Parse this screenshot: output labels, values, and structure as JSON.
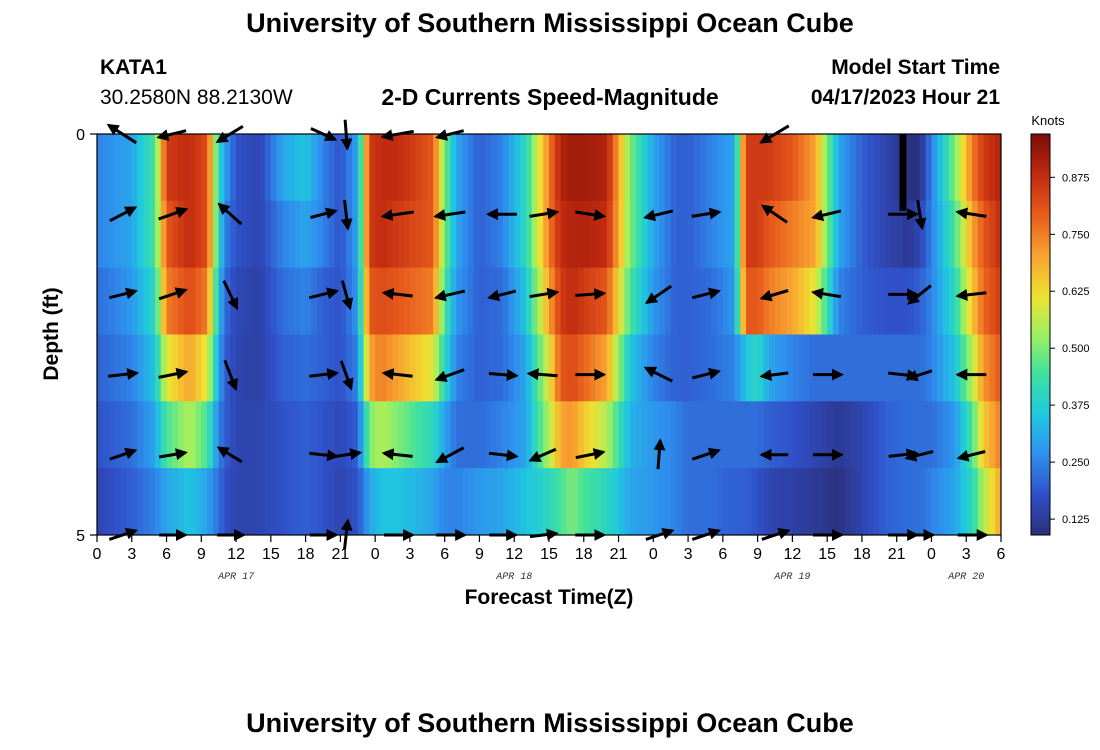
{
  "header": {
    "title": "University of Southern Mississippi Ocean Cube",
    "station_id": "KATA1",
    "station_coords": "30.2580N  88.2130W",
    "plot_title": "2-D Currents Speed-Magnitude",
    "model_start_label": "Model Start Time",
    "model_start_value": "04/17/2023 Hour 21"
  },
  "footer": {
    "title": "University of Southern Mississippi Ocean Cube"
  },
  "colors": {
    "colormap": [
      "#2b2e7a",
      "#3050c8",
      "#2f8fee",
      "#1fc8e0",
      "#3ee0a0",
      "#9ff060",
      "#f0e030",
      "#f8a030",
      "#e85a1c",
      "#c02a10",
      "#7a0c06"
    ],
    "arrow": "#000000"
  },
  "chart_data": {
    "type": "heatmap",
    "title": "2-D Currents Speed-Magnitude",
    "xlabel": "Forecast Time(Z)",
    "ylabel": "Depth (ft)",
    "colorbar_label": "Knots",
    "colorbar_ticks": [
      "0.125",
      "0.250",
      "0.375",
      "0.500",
      "0.625",
      "0.750",
      "0.875"
    ],
    "colorbar_range": [
      0.09,
      0.97
    ],
    "y_tick_labels": [
      "0",
      "5"
    ],
    "ylim": [
      0,
      5
    ],
    "x_tick_labels": [
      "0",
      "3",
      "6",
      "9",
      "12",
      "15",
      "18",
      "21",
      "0",
      "3",
      "6",
      "9",
      "12",
      "15",
      "18",
      "21",
      "0",
      "3",
      "6",
      "9",
      "12",
      "15",
      "18",
      "21",
      "0",
      "3",
      "6"
    ],
    "date_labels": [
      {
        "text": "APR 17",
        "hour": 12
      },
      {
        "text": "APR 18",
        "hour": 36
      },
      {
        "text": "APR 19",
        "hour": 60
      },
      {
        "text": "APR 20",
        "hour": 75
      }
    ],
    "x_hours_range": [
      0,
      78
    ],
    "depth_rows": [
      0,
      1,
      2,
      3,
      4,
      5
    ],
    "speed_profile": {
      "hours": [
        0,
        3,
        5,
        6,
        8,
        9.5,
        10.5,
        11,
        12,
        14,
        16,
        18,
        19.5,
        21,
        22.5,
        23.5,
        24.5,
        26,
        29,
        30,
        31,
        33,
        35,
        37,
        39,
        40,
        41,
        42,
        44,
        46,
        48,
        50,
        51,
        53,
        55,
        56,
        57,
        58,
        60,
        62,
        64,
        66,
        68,
        70,
        71,
        72,
        74,
        75.5,
        76.5,
        78
      ],
      "rows": [
        [
          0.25,
          0.3,
          0.45,
          0.85,
          0.88,
          0.82,
          0.4,
          0.3,
          0.18,
          0.15,
          0.3,
          0.35,
          0.25,
          0.18,
          0.3,
          0.85,
          0.88,
          0.88,
          0.8,
          0.5,
          0.3,
          0.2,
          0.25,
          0.4,
          0.75,
          0.9,
          0.92,
          0.92,
          0.9,
          0.5,
          0.3,
          0.2,
          0.2,
          0.25,
          0.3,
          0.85,
          0.85,
          0.85,
          0.8,
          0.7,
          0.3,
          0.2,
          0.15,
          0.1,
          0.1,
          0.25,
          0.5,
          0.75,
          0.85,
          0.9
        ],
        [
          0.25,
          0.3,
          0.45,
          0.8,
          0.88,
          0.82,
          0.4,
          0.25,
          0.18,
          0.15,
          0.25,
          0.3,
          0.25,
          0.18,
          0.3,
          0.85,
          0.88,
          0.85,
          0.8,
          0.5,
          0.3,
          0.2,
          0.25,
          0.4,
          0.75,
          0.88,
          0.9,
          0.9,
          0.88,
          0.5,
          0.3,
          0.2,
          0.2,
          0.25,
          0.3,
          0.85,
          0.85,
          0.8,
          0.75,
          0.7,
          0.3,
          0.2,
          0.15,
          0.12,
          0.15,
          0.25,
          0.45,
          0.7,
          0.8,
          0.88
        ],
        [
          0.22,
          0.28,
          0.4,
          0.75,
          0.82,
          0.75,
          0.35,
          0.22,
          0.16,
          0.14,
          0.22,
          0.25,
          0.2,
          0.18,
          0.28,
          0.8,
          0.82,
          0.8,
          0.75,
          0.45,
          0.28,
          0.2,
          0.22,
          0.35,
          0.7,
          0.85,
          0.88,
          0.85,
          0.8,
          0.45,
          0.28,
          0.2,
          0.2,
          0.22,
          0.28,
          0.8,
          0.8,
          0.75,
          0.7,
          0.6,
          0.25,
          0.2,
          0.18,
          0.18,
          0.2,
          0.25,
          0.4,
          0.65,
          0.78,
          0.85
        ],
        [
          0.2,
          0.25,
          0.35,
          0.6,
          0.7,
          0.6,
          0.3,
          0.2,
          0.15,
          0.14,
          0.2,
          0.22,
          0.2,
          0.18,
          0.25,
          0.7,
          0.75,
          0.7,
          0.6,
          0.4,
          0.25,
          0.2,
          0.22,
          0.3,
          0.6,
          0.8,
          0.82,
          0.78,
          0.7,
          0.35,
          0.25,
          0.2,
          0.2,
          0.22,
          0.25,
          0.35,
          0.4,
          0.3,
          0.25,
          0.22,
          0.22,
          0.22,
          0.22,
          0.22,
          0.22,
          0.25,
          0.35,
          0.55,
          0.72,
          0.8
        ],
        [
          0.18,
          0.22,
          0.3,
          0.45,
          0.55,
          0.45,
          0.25,
          0.2,
          0.15,
          0.15,
          0.18,
          0.2,
          0.18,
          0.16,
          0.2,
          0.5,
          0.55,
          0.5,
          0.4,
          0.3,
          0.22,
          0.22,
          0.25,
          0.3,
          0.55,
          0.7,
          0.72,
          0.65,
          0.55,
          0.32,
          0.28,
          0.25,
          0.22,
          0.22,
          0.22,
          0.22,
          0.22,
          0.2,
          0.18,
          0.15,
          0.12,
          0.15,
          0.2,
          0.22,
          0.22,
          0.22,
          0.28,
          0.45,
          0.65,
          0.75
        ],
        [
          0.15,
          0.2,
          0.25,
          0.3,
          0.35,
          0.3,
          0.22,
          0.18,
          0.15,
          0.15,
          0.18,
          0.2,
          0.18,
          0.15,
          0.18,
          0.3,
          0.35,
          0.35,
          0.3,
          0.25,
          0.25,
          0.28,
          0.3,
          0.35,
          0.4,
          0.45,
          0.5,
          0.45,
          0.4,
          0.3,
          0.28,
          0.25,
          0.22,
          0.22,
          0.2,
          0.2,
          0.18,
          0.15,
          0.14,
          0.12,
          0.1,
          0.15,
          0.2,
          0.22,
          0.22,
          0.25,
          0.3,
          0.4,
          0.55,
          0.7
        ]
      ]
    },
    "dark_spot": {
      "hour": 69.5,
      "rows": [
        0,
        1
      ],
      "value": 0.09
    },
    "arrow_hours": [
      2.2,
      6.5,
      11.5,
      19.5,
      21.5,
      26,
      30.5,
      35,
      38.5,
      42.5,
      48.5,
      52.5,
      58.5,
      63,
      69.5,
      71,
      75.5
    ],
    "arrows_by_row": [
      [
        [
          -2.5,
          1.6
        ],
        [
          -2.5,
          -0.6
        ],
        [
          -2.3,
          -1.4
        ],
        [
          2.2,
          -1.0
        ],
        [
          0.2,
          -2.6
        ],
        [
          -2.8,
          -0.5
        ],
        [
          -2.4,
          -0.6
        ],
        [
          0.0,
          0.0
        ],
        [
          0.0,
          0.0
        ],
        [
          0.0,
          0.0
        ],
        [
          0.0,
          0.0
        ],
        [
          0.0,
          0.0
        ],
        [
          -2.5,
          -1.5
        ],
        [
          0.0,
          0.0
        ],
        [
          0.0,
          0.0
        ],
        [
          0.0,
          0.0
        ],
        [
          0.0,
          0.0
        ]
      ],
      [
        [
          2.3,
          1.2
        ],
        [
          2.5,
          0.9
        ],
        [
          -2.0,
          1.8
        ],
        [
          2.3,
          0.6
        ],
        [
          0.3,
          -2.6
        ],
        [
          -2.8,
          -0.4
        ],
        [
          -2.7,
          -0.4
        ],
        [
          -2.6,
          0.0
        ],
        [
          2.5,
          0.4
        ],
        [
          2.6,
          -0.4
        ],
        [
          -2.5,
          -0.6
        ],
        [
          2.5,
          0.4
        ],
        [
          -2.2,
          1.5
        ],
        [
          -2.5,
          -0.6
        ],
        [
          2.6,
          0.0
        ],
        [
          0.4,
          -2.5
        ],
        [
          -2.6,
          0.4
        ]
      ],
      [
        [
          2.4,
          0.6
        ],
        [
          2.4,
          0.8
        ],
        [
          1.2,
          -2.5
        ],
        [
          2.5,
          0.6
        ],
        [
          0.7,
          -2.5
        ],
        [
          -2.6,
          0.3
        ],
        [
          -2.6,
          -0.6
        ],
        [
          -2.4,
          -0.6
        ],
        [
          2.5,
          0.4
        ],
        [
          2.6,
          0.2
        ],
        [
          -2.2,
          -1.5
        ],
        [
          2.4,
          0.6
        ],
        [
          -2.4,
          -0.7
        ],
        [
          -2.5,
          0.4
        ],
        [
          2.6,
          0.0
        ],
        [
          -2.0,
          -1.6
        ],
        [
          -2.6,
          -0.3
        ]
      ],
      [
        [
          2.6,
          0.3
        ],
        [
          2.5,
          0.5
        ],
        [
          1.0,
          -2.6
        ],
        [
          2.5,
          0.3
        ],
        [
          0.9,
          -2.5
        ],
        [
          -2.6,
          0.3
        ],
        [
          -2.5,
          -0.9
        ],
        [
          2.5,
          -0.2
        ],
        [
          -2.6,
          0.2
        ],
        [
          2.6,
          0.0
        ],
        [
          -2.4,
          1.2
        ],
        [
          2.4,
          0.6
        ],
        [
          -2.4,
          -0.3
        ],
        [
          2.6,
          0.0
        ],
        [
          2.6,
          -0.3
        ],
        [
          -2.2,
          -0.7
        ],
        [
          -2.6,
          0.0
        ]
      ],
      [
        [
          2.3,
          0.8
        ],
        [
          2.4,
          0.4
        ],
        [
          -2.1,
          1.3
        ],
        [
          2.5,
          -0.3
        ],
        [
          2.5,
          0.4
        ],
        [
          -2.6,
          0.3
        ],
        [
          -2.4,
          -1.3
        ],
        [
          2.5,
          -0.3
        ],
        [
          -2.3,
          -1.0
        ],
        [
          2.5,
          0.5
        ],
        [
          0.2,
          2.6
        ],
        [
          2.4,
          0.8
        ],
        [
          -2.4,
          0.0
        ],
        [
          2.6,
          0.0
        ],
        [
          2.5,
          0.3
        ],
        [
          -2.4,
          -0.6
        ],
        [
          -2.4,
          -0.6
        ]
      ],
      [
        [
          2.4,
          0.8
        ],
        [
          2.4,
          0.0
        ],
        [
          2.4,
          0.0
        ],
        [
          2.4,
          0.0
        ],
        [
          0.3,
          2.6
        ],
        [
          2.6,
          0.0
        ],
        [
          2.6,
          0.0
        ],
        [
          2.4,
          0.0
        ],
        [
          2.4,
          0.3
        ],
        [
          2.6,
          0.0
        ],
        [
          2.4,
          0.8
        ],
        [
          2.4,
          0.8
        ],
        [
          2.4,
          0.8
        ],
        [
          2.6,
          0.0
        ],
        [
          2.6,
          0.0
        ],
        [
          2.4,
          0.0
        ],
        [
          2.6,
          0.0
        ]
      ]
    ]
  }
}
